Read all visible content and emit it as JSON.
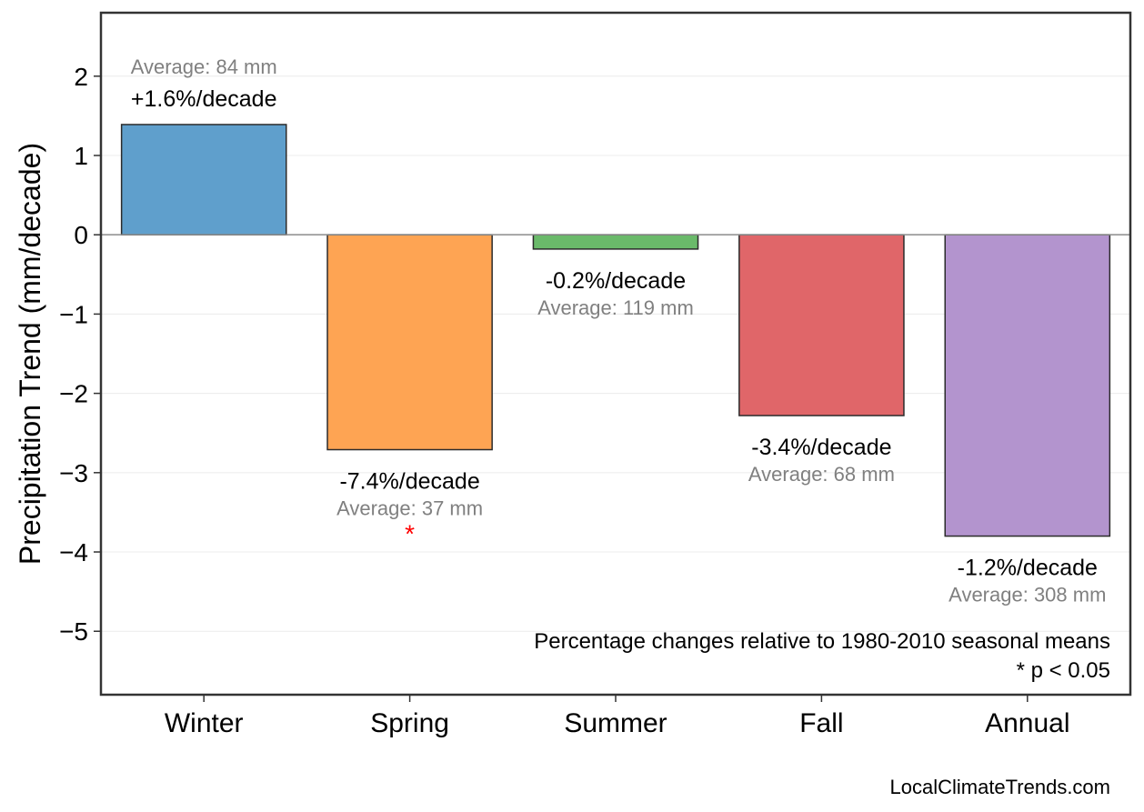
{
  "chart_data": {
    "type": "bar",
    "title": "",
    "xlabel": "",
    "ylabel": "Precipitation Trend (mm/decade)",
    "ylim": [
      -5.8,
      2.8
    ],
    "yticks": [
      2,
      1,
      0,
      -1,
      -2,
      -3,
      -4,
      -5
    ],
    "ytick_labels": [
      "2",
      "1",
      "0",
      "−1",
      "−2",
      "−3",
      "−4",
      "−5"
    ],
    "grid": true,
    "categories": [
      "Winter",
      "Spring",
      "Summer",
      "Fall",
      "Annual"
    ],
    "values": [
      1.39,
      -2.71,
      -0.18,
      -2.28,
      -3.8
    ],
    "colors": [
      "#5f9fcc",
      "#fea453",
      "#6aba6a",
      "#e06669",
      "#b394ce"
    ],
    "percent_labels": [
      "+1.6%/decade",
      "-7.4%/decade",
      "-0.2%/decade",
      "-3.4%/decade",
      "-1.2%/decade"
    ],
    "average_labels": [
      "Average: 84 mm",
      "Average: 37 mm",
      "Average: 119 mm",
      "Average: 68 mm",
      "Average: 308 mm"
    ],
    "significant": [
      false,
      true,
      false,
      false,
      false
    ],
    "significance_marker": "*",
    "significance_color": "#ff0000",
    "notes": [
      "Percentage changes relative to 1980-2010 seasonal means",
      "* p < 0.05"
    ],
    "source": "LocalClimateTrends.com"
  }
}
